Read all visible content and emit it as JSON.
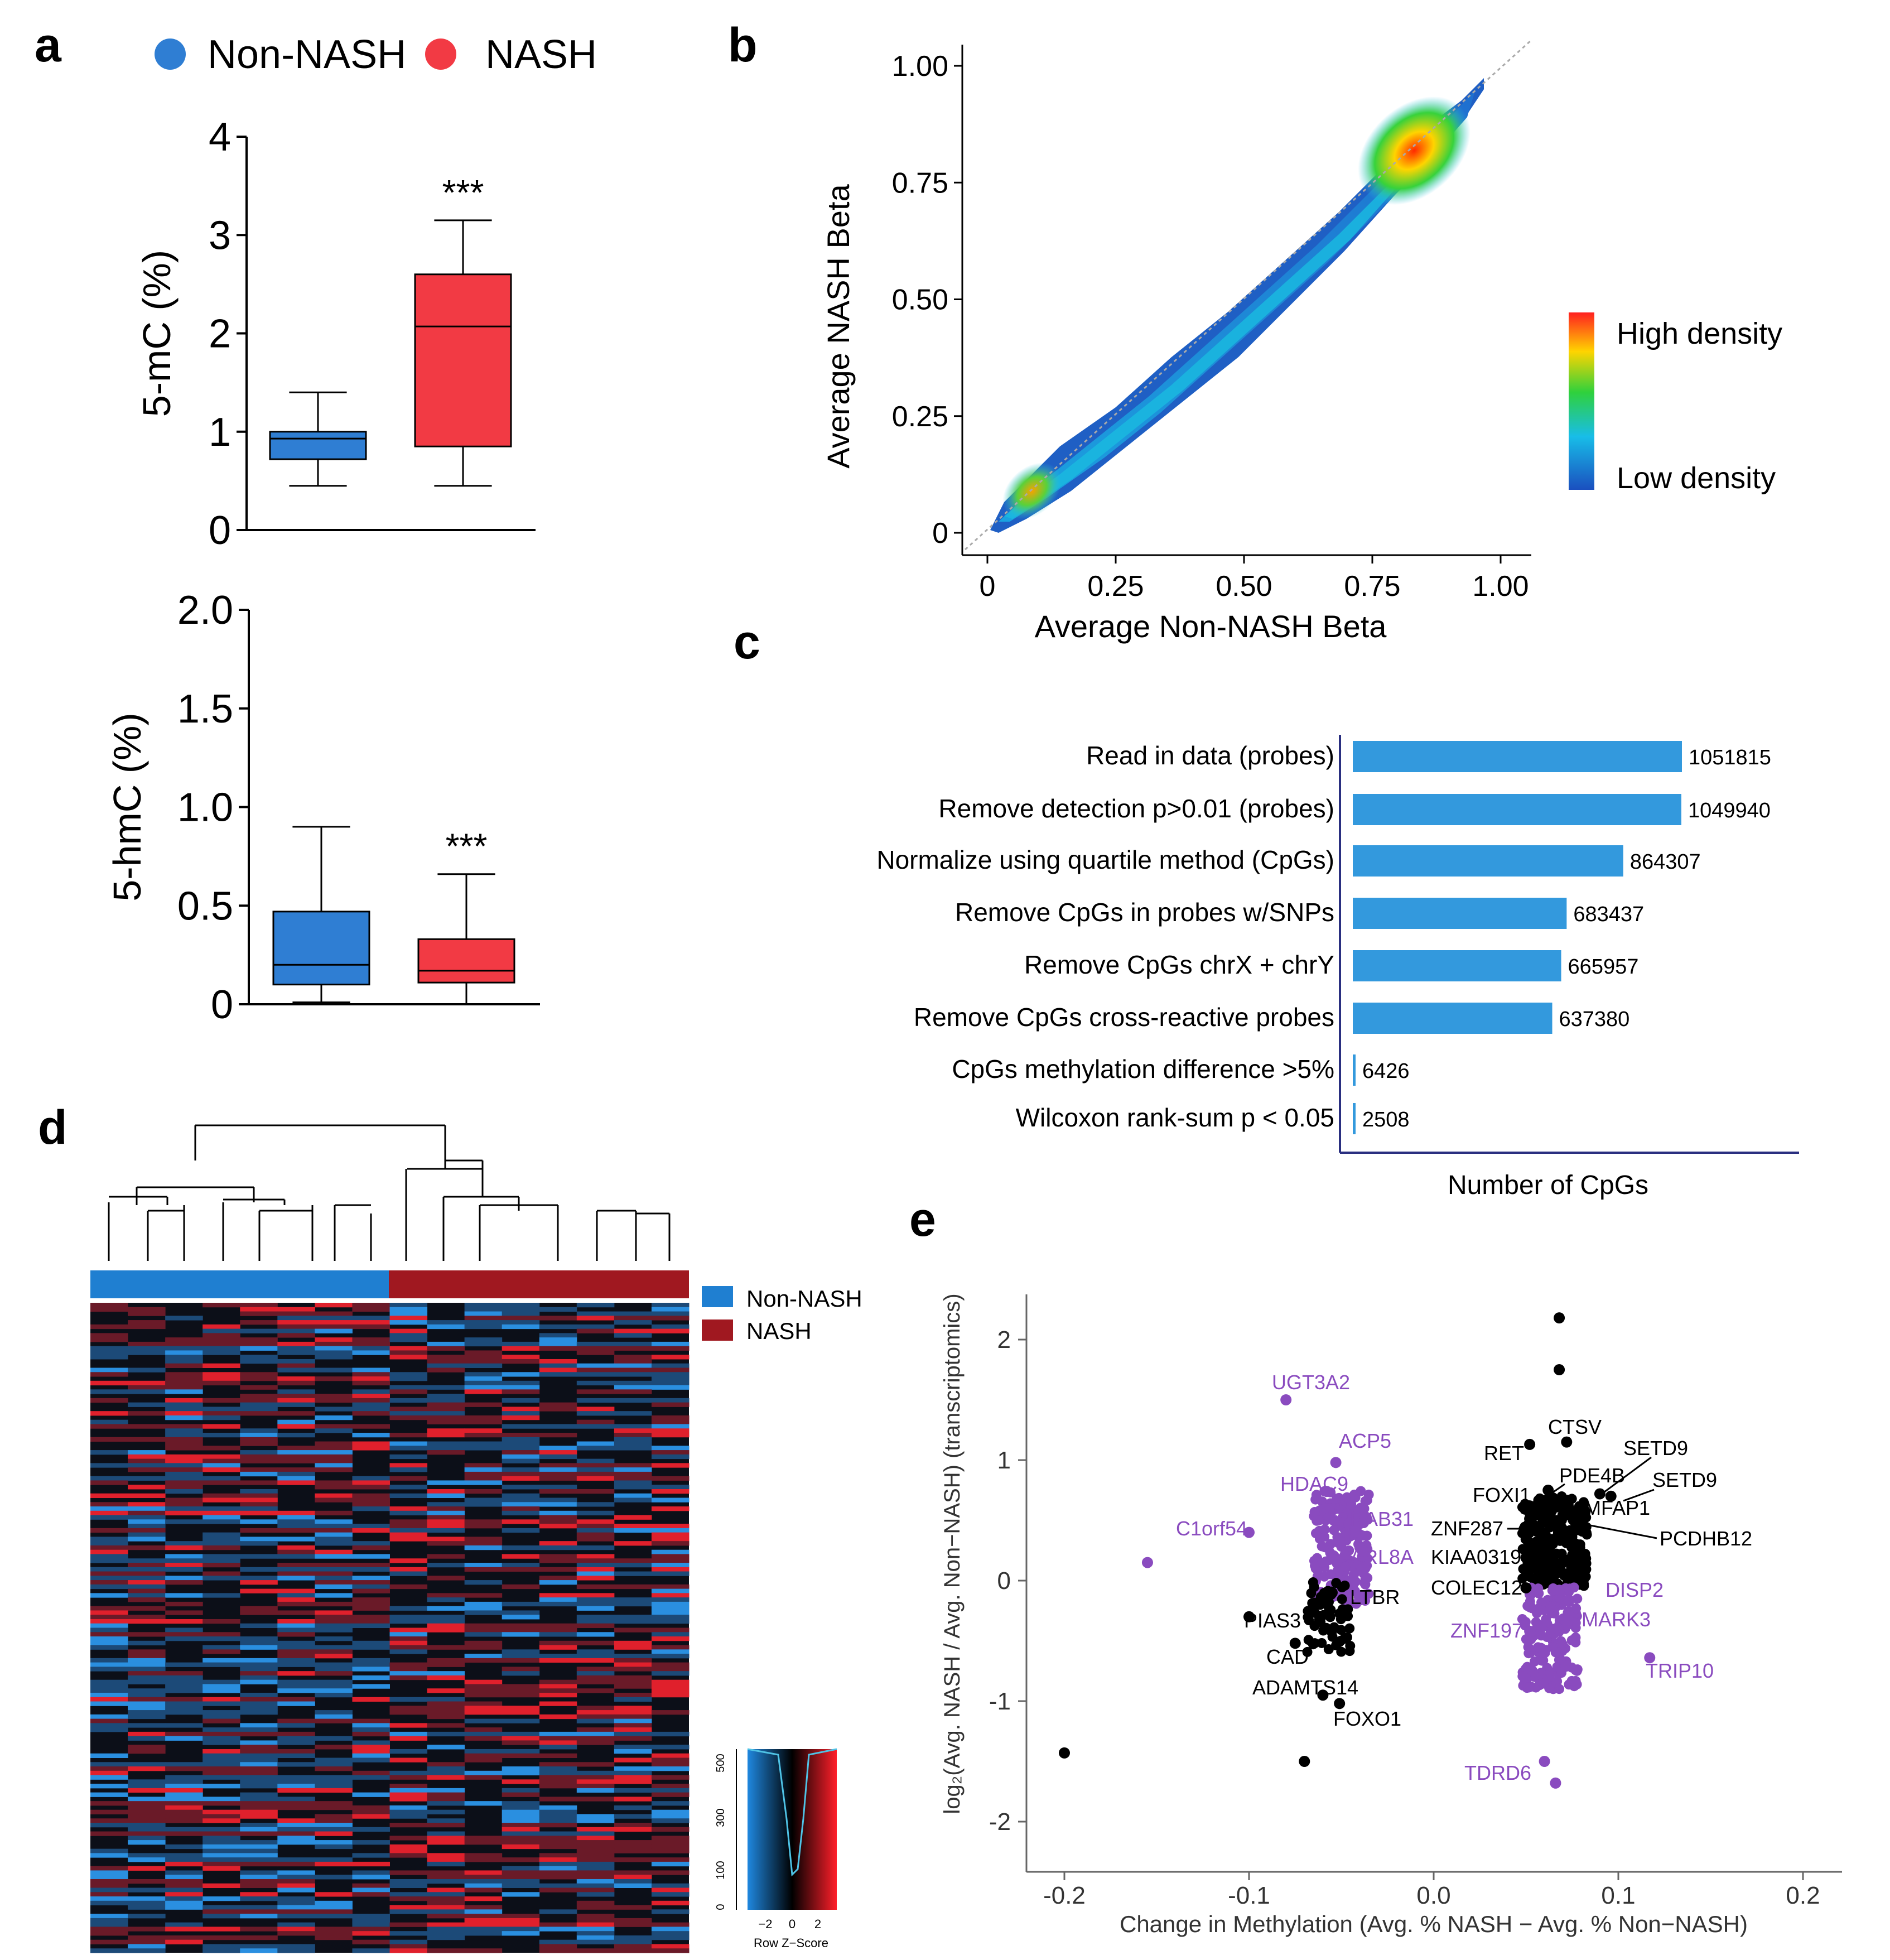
{
  "figure": {
    "panel_labels": [
      "a",
      "b",
      "c",
      "d",
      "e"
    ],
    "colors": {
      "non_nash": "#2f7ed3",
      "nash": "#f23a44",
      "bar": "#3399dd",
      "heat_non_nash": "#1f7fd1",
      "heat_nash": "#a01820",
      "purple": "#8a4bbf"
    }
  },
  "chart_data": [
    {
      "id": "a-top",
      "type": "box",
      "legend": [
        "Non-NASH",
        "NASH"
      ],
      "ylabel": "5-mC (%)",
      "ylim": [
        0,
        4
      ],
      "yticks": [
        "0",
        "1",
        "2",
        "3",
        "4"
      ],
      "yticks_values": [
        0,
        1,
        2,
        3,
        4
      ],
      "groups": [
        {
          "name": "Non-NASH",
          "min": 0.45,
          "q1": 0.72,
          "median": 0.93,
          "q3": 1.0,
          "max": 1.4
        },
        {
          "name": "NASH",
          "min": 0.45,
          "q1": 0.85,
          "median": 2.07,
          "q3": 2.6,
          "max": 3.15
        }
      ],
      "significance": "***"
    },
    {
      "id": "a-bottom",
      "type": "box",
      "ylabel": "5-hmC (%)",
      "ylim": [
        0,
        2
      ],
      "yticks": [
        "0",
        "0.5",
        "1.0",
        "1.5",
        "2.0"
      ],
      "yticks_values": [
        0,
        0.5,
        1,
        1.5,
        2
      ],
      "groups": [
        {
          "name": "Non-NASH",
          "min": 0.01,
          "q1": 0.1,
          "median": 0.2,
          "q3": 0.47,
          "max": 0.9
        },
        {
          "name": "NASH",
          "min": 0.0,
          "q1": 0.11,
          "median": 0.17,
          "q3": 0.33,
          "max": 0.66
        }
      ],
      "significance": "***"
    },
    {
      "id": "b",
      "type": "scatter",
      "xlabel": "Average Non-NASH Beta",
      "ylabel": "Average NASH Beta",
      "xlim": [
        0,
        1
      ],
      "ylim": [
        0,
        1
      ],
      "ticks": [
        "0",
        "0.25",
        "0.50",
        "0.75",
        "1.00"
      ],
      "ticks_values": [
        0,
        0.25,
        0.5,
        0.75,
        1
      ],
      "density_legend": {
        "high": "High density",
        "low": "Low density"
      }
    },
    {
      "id": "c",
      "type": "bar",
      "orientation": "horizontal",
      "xlabel": "Number of CpGs",
      "categories": [
        "Read in data (probes)",
        "Remove detection p>0.01 (probes)",
        "Normalize using quartile method (CpGs)",
        "Remove CpGs in probes w/SNPs",
        "Remove CpGs chrX + chrY",
        "Remove CpGs cross-reactive probes",
        "CpGs methylation difference >5%",
        "Wilcoxon rank-sum p < 0.05"
      ],
      "values": [
        1051815,
        1049940,
        864307,
        683437,
        665957,
        637380,
        6426,
        2508
      ],
      "value_labels": [
        "1051815",
        "1049940",
        "864307",
        "683437",
        "665957",
        "637380",
        "6426",
        "2508"
      ]
    },
    {
      "id": "d",
      "type": "heatmap",
      "legend": [
        "Non-NASH",
        "NASH"
      ],
      "groups": {
        "non_nash_columns": 8,
        "nash_columns": 8
      },
      "color_key": {
        "title": "Row Z−Score",
        "ticks": [
          "−2",
          "0",
          "2"
        ],
        "hist_ticks": [
          "500",
          "300",
          "100",
          "0"
        ]
      }
    },
    {
      "id": "e",
      "type": "scatter",
      "xlabel": "Change in Methylation (Avg. % NASH − Avg. % Non−NASH)",
      "ylabel": "log₂(Avg. NASH / Avg. Non−NASH) (transcriptomics)",
      "xlim": [
        -0.22,
        0.22
      ],
      "ylim": [
        -2.4,
        2.4
      ],
      "xticks": [
        "-0.2",
        "-0.1",
        "0.0",
        "0.1",
        "0.2"
      ],
      "xticks_values": [
        -0.2,
        -0.1,
        0,
        0.1,
        0.2
      ],
      "yticks": [
        "2",
        "1",
        "0",
        "-1",
        "-2"
      ],
      "yticks_values": [
        2,
        1,
        0,
        -1,
        -2
      ],
      "labeled_points": [
        {
          "label": "UGT3A2",
          "x": -0.08,
          "y": 1.5,
          "color": "purple"
        },
        {
          "label": "ACP5",
          "x": -0.053,
          "y": 0.98,
          "color": "purple"
        },
        {
          "label": "HDAC9",
          "x": -0.058,
          "y": 0.74,
          "color": "purple"
        },
        {
          "label": "RAB31",
          "x": -0.054,
          "y": 0.5,
          "color": "purple"
        },
        {
          "label": "C1orf54",
          "x": -0.1,
          "y": 0.4,
          "color": "purple"
        },
        {
          "label": "ARL8A",
          "x": -0.054,
          "y": 0.2,
          "color": "purple"
        },
        {
          "label": "LTBR",
          "x": -0.055,
          "y": -0.1,
          "color": "black"
        },
        {
          "label": "PIAS3",
          "x": -0.1,
          "y": -0.3,
          "color": "black"
        },
        {
          "label": "CAD",
          "x": -0.075,
          "y": -0.52,
          "color": "black"
        },
        {
          "label": "ADAMTS14",
          "x": -0.06,
          "y": -0.95,
          "color": "black"
        },
        {
          "label": "FOXO1",
          "x": -0.051,
          "y": -1.02,
          "color": "black"
        },
        {
          "label": "CTSV",
          "x": 0.072,
          "y": 1.15,
          "color": "black"
        },
        {
          "label": "RET",
          "x": 0.052,
          "y": 1.13,
          "color": "black"
        },
        {
          "label": "SETD9",
          "x": 0.09,
          "y": 0.72,
          "color": "black"
        },
        {
          "label": "SETD9",
          "x": 0.096,
          "y": 0.7,
          "color": "black"
        },
        {
          "label": "PDE4B",
          "x": 0.062,
          "y": 0.75,
          "color": "black"
        },
        {
          "label": "FOXI1",
          "x": 0.052,
          "y": 0.62,
          "color": "black"
        },
        {
          "label": "MFAP1",
          "x": 0.078,
          "y": 0.5,
          "color": "black"
        },
        {
          "label": "ZNF287",
          "x": 0.05,
          "y": 0.44,
          "color": "black"
        },
        {
          "label": "PCDHB12",
          "x": 0.068,
          "y": 0.4,
          "color": "black"
        },
        {
          "label": "KIAA0319",
          "x": 0.05,
          "y": 0.19,
          "color": "black"
        },
        {
          "label": "COLEC12",
          "x": 0.05,
          "y": -0.06,
          "color": "black"
        },
        {
          "label": "DISP2",
          "x": 0.068,
          "y": -0.08,
          "color": "purple"
        },
        {
          "label": "MARK3",
          "x": 0.072,
          "y": -0.33,
          "color": "purple"
        },
        {
          "label": "ZNF197",
          "x": 0.052,
          "y": -0.42,
          "color": "purple"
        },
        {
          "label": "TRIP10",
          "x": 0.117,
          "y": -0.64,
          "color": "purple"
        },
        {
          "label": "TDRD6",
          "x": 0.06,
          "y": -1.5,
          "color": "purple"
        }
      ],
      "outlier_points": [
        {
          "x": -0.2,
          "y": -1.43,
          "color": "black"
        },
        {
          "x": -0.07,
          "y": -1.5,
          "color": "black"
        },
        {
          "x": 0.068,
          "y": 2.18,
          "color": "black"
        },
        {
          "x": 0.068,
          "y": 1.75,
          "color": "black"
        },
        {
          "x": -0.155,
          "y": 0.15,
          "color": "purple"
        },
        {
          "x": 0.066,
          "y": -1.68,
          "color": "purple"
        }
      ]
    }
  ]
}
